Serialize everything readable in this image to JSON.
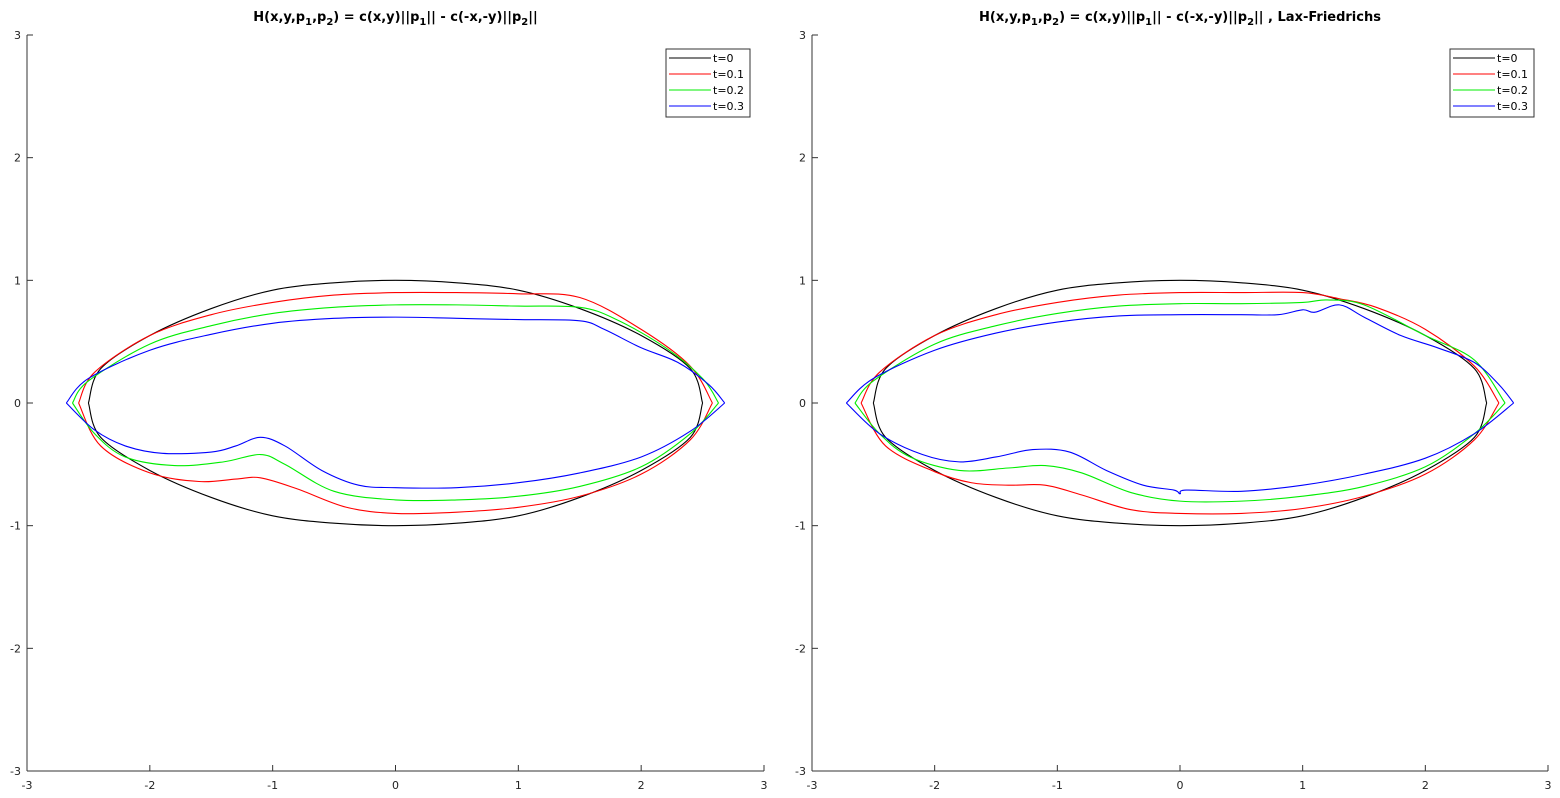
{
  "chart_data": [
    {
      "type": "line",
      "title": {
        "prefix": "H(x,y,p",
        "sub1": "1",
        "mid1": ",p",
        "sub2": "2",
        "mid2": ") = c(x,y)||p",
        "sub3": "1",
        "mid3": "|| - c(-x,-y)||p",
        "sub4": "2",
        "suffix": "||"
      },
      "xlim": [
        -3,
        3
      ],
      "ylim": [
        -3,
        3
      ],
      "xticks": [
        -3,
        -2,
        -1,
        0,
        1,
        2,
        3
      ],
      "yticks": [
        -3,
        -2,
        -1,
        0,
        1,
        2,
        3
      ],
      "grid": false,
      "legend_position": "top-right",
      "series": [
        {
          "name": "t=0",
          "color": "#000000",
          "upper": [
            [
              -2.5,
              0
            ],
            [
              -2.4,
              0.28
            ],
            [
              -2,
              0.55
            ],
            [
              -1.5,
              0.77
            ],
            [
              -1,
              0.92
            ],
            [
              -0.5,
              0.98
            ],
            [
              0,
              1
            ],
            [
              0.5,
              0.98
            ],
            [
              1,
              0.92
            ],
            [
              1.5,
              0.77
            ],
            [
              2,
              0.55
            ],
            [
              2.4,
              0.28
            ],
            [
              2.5,
              0
            ]
          ],
          "lower": [
            [
              -2.5,
              0
            ],
            [
              -2.4,
              -0.28
            ],
            [
              -2,
              -0.55
            ],
            [
              -1.5,
              -0.77
            ],
            [
              -1,
              -0.92
            ],
            [
              -0.5,
              -0.98
            ],
            [
              0,
              -1
            ],
            [
              0.5,
              -0.98
            ],
            [
              1,
              -0.92
            ],
            [
              1.5,
              -0.77
            ],
            [
              2,
              -0.55
            ],
            [
              2.4,
              -0.28
            ],
            [
              2.5,
              0
            ]
          ]
        },
        {
          "name": "t=0.1",
          "color": "#ff0000",
          "upper": [
            [
              -2.58,
              0
            ],
            [
              -2.45,
              0.25
            ],
            [
              -2,
              0.55
            ],
            [
              -1.5,
              0.72
            ],
            [
              -1,
              0.82
            ],
            [
              -0.5,
              0.88
            ],
            [
              0,
              0.9
            ],
            [
              0.5,
              0.9
            ],
            [
              1,
              0.89
            ],
            [
              1.5,
              0.86
            ],
            [
              2,
              0.6
            ],
            [
              2.4,
              0.3
            ],
            [
              2.58,
              0
            ]
          ],
          "lower": [
            [
              -2.58,
              0
            ],
            [
              -2.4,
              -0.35
            ],
            [
              -2,
              -0.57
            ],
            [
              -1.6,
              -0.64
            ],
            [
              -1.3,
              -0.62
            ],
            [
              -1.1,
              -0.61
            ],
            [
              -0.8,
              -0.7
            ],
            [
              -0.4,
              -0.85
            ],
            [
              0,
              -0.9
            ],
            [
              0.5,
              -0.89
            ],
            [
              1,
              -0.85
            ],
            [
              1.5,
              -0.76
            ],
            [
              2,
              -0.58
            ],
            [
              2.4,
              -0.3
            ],
            [
              2.58,
              0
            ]
          ]
        },
        {
          "name": "t=0.2",
          "color": "#00ee00",
          "upper": [
            [
              -2.63,
              0
            ],
            [
              -2.5,
              0.18
            ],
            [
              -2,
              0.48
            ],
            [
              -1.5,
              0.63
            ],
            [
              -1,
              0.73
            ],
            [
              -0.5,
              0.78
            ],
            [
              0,
              0.8
            ],
            [
              0.5,
              0.8
            ],
            [
              1,
              0.79
            ],
            [
              1.5,
              0.78
            ],
            [
              1.8,
              0.68
            ],
            [
              2.2,
              0.45
            ],
            [
              2.5,
              0.2
            ],
            [
              2.63,
              0
            ]
          ],
          "lower": [
            [
              -2.63,
              0
            ],
            [
              -2.45,
              -0.25
            ],
            [
              -2.2,
              -0.44
            ],
            [
              -1.8,
              -0.51
            ],
            [
              -1.4,
              -0.48
            ],
            [
              -1.1,
              -0.42
            ],
            [
              -0.9,
              -0.5
            ],
            [
              -0.5,
              -0.72
            ],
            [
              0,
              -0.79
            ],
            [
              0.5,
              -0.79
            ],
            [
              1,
              -0.76
            ],
            [
              1.5,
              -0.68
            ],
            [
              2,
              -0.52
            ],
            [
              2.4,
              -0.25
            ],
            [
              2.63,
              0
            ]
          ]
        },
        {
          "name": "t=0.3",
          "color": "#0000ff",
          "upper": [
            [
              -2.68,
              0
            ],
            [
              -2.5,
              0.2
            ],
            [
              -2,
              0.43
            ],
            [
              -1.5,
              0.56
            ],
            [
              -1,
              0.65
            ],
            [
              -0.5,
              0.69
            ],
            [
              0,
              0.7
            ],
            [
              0.5,
              0.69
            ],
            [
              1,
              0.68
            ],
            [
              1.5,
              0.67
            ],
            [
              1.7,
              0.6
            ],
            [
              2,
              0.45
            ],
            [
              2.3,
              0.33
            ],
            [
              2.55,
              0.15
            ],
            [
              2.68,
              0
            ]
          ],
          "lower": [
            [
              -2.68,
              0
            ],
            [
              -2.45,
              -0.22
            ],
            [
              -2.2,
              -0.35
            ],
            [
              -1.9,
              -0.41
            ],
            [
              -1.5,
              -0.4
            ],
            [
              -1.3,
              -0.35
            ],
            [
              -1.1,
              -0.28
            ],
            [
              -0.9,
              -0.35
            ],
            [
              -0.6,
              -0.55
            ],
            [
              -0.3,
              -0.67
            ],
            [
              0,
              -0.69
            ],
            [
              0.5,
              -0.69
            ],
            [
              1,
              -0.65
            ],
            [
              1.5,
              -0.57
            ],
            [
              2,
              -0.44
            ],
            [
              2.4,
              -0.23
            ],
            [
              2.68,
              0
            ]
          ]
        }
      ]
    },
    {
      "type": "line",
      "title": {
        "prefix": "H(x,y,p",
        "sub1": "1",
        "mid1": ",p",
        "sub2": "2",
        "mid2": ") = c(x,y)||p",
        "sub3": "1",
        "mid3": "|| - c(-x,-y)||p",
        "sub4": "2",
        "suffix": "|| , Lax-Friedrichs"
      },
      "xlim": [
        -3,
        3
      ],
      "ylim": [
        -3,
        3
      ],
      "xticks": [
        -3,
        -2,
        -1,
        0,
        1,
        2,
        3
      ],
      "yticks": [
        -3,
        -2,
        -1,
        0,
        1,
        2,
        3
      ],
      "grid": false,
      "legend_position": "top-right",
      "series": [
        {
          "name": "t=0",
          "color": "#000000",
          "upper": [
            [
              -2.5,
              0
            ],
            [
              -2.4,
              0.28
            ],
            [
              -2,
              0.55
            ],
            [
              -1.5,
              0.77
            ],
            [
              -1,
              0.92
            ],
            [
              -0.5,
              0.98
            ],
            [
              0,
              1
            ],
            [
              0.5,
              0.98
            ],
            [
              1,
              0.92
            ],
            [
              1.5,
              0.77
            ],
            [
              2,
              0.55
            ],
            [
              2.4,
              0.28
            ],
            [
              2.5,
              0
            ]
          ],
          "lower": [
            [
              -2.5,
              0
            ],
            [
              -2.4,
              -0.28
            ],
            [
              -2,
              -0.55
            ],
            [
              -1.5,
              -0.77
            ],
            [
              -1,
              -0.92
            ],
            [
              -0.5,
              -0.98
            ],
            [
              0,
              -1
            ],
            [
              0.5,
              -0.98
            ],
            [
              1,
              -0.92
            ],
            [
              1.5,
              -0.77
            ],
            [
              2,
              -0.55
            ],
            [
              2.4,
              -0.28
            ],
            [
              2.5,
              0
            ]
          ]
        },
        {
          "name": "t=0.1",
          "color": "#ff0000",
          "upper": [
            [
              -2.6,
              0
            ],
            [
              -2.45,
              0.25
            ],
            [
              -2,
              0.55
            ],
            [
              -1.5,
              0.72
            ],
            [
              -1,
              0.82
            ],
            [
              -0.5,
              0.88
            ],
            [
              0,
              0.9
            ],
            [
              0.5,
              0.9
            ],
            [
              1,
              0.9
            ],
            [
              1.3,
              0.85
            ],
            [
              1.6,
              0.78
            ],
            [
              2,
              0.6
            ],
            [
              2.4,
              0.3
            ],
            [
              2.6,
              0
            ]
          ],
          "lower": [
            [
              -2.6,
              0
            ],
            [
              -2.4,
              -0.35
            ],
            [
              -2,
              -0.56
            ],
            [
              -1.7,
              -0.65
            ],
            [
              -1.4,
              -0.67
            ],
            [
              -1.1,
              -0.67
            ],
            [
              -0.8,
              -0.75
            ],
            [
              -0.4,
              -0.87
            ],
            [
              0,
              -0.9
            ],
            [
              0.5,
              -0.9
            ],
            [
              1,
              -0.86
            ],
            [
              1.5,
              -0.76
            ],
            [
              2,
              -0.58
            ],
            [
              2.4,
              -0.3
            ],
            [
              2.6,
              0
            ]
          ]
        },
        {
          "name": "t=0.2",
          "color": "#00ee00",
          "upper": [
            [
              -2.65,
              0
            ],
            [
              -2.5,
              0.18
            ],
            [
              -2,
              0.48
            ],
            [
              -1.5,
              0.63
            ],
            [
              -1,
              0.73
            ],
            [
              -0.5,
              0.79
            ],
            [
              0,
              0.81
            ],
            [
              0.5,
              0.81
            ],
            [
              1,
              0.82
            ],
            [
              1.2,
              0.84
            ],
            [
              1.5,
              0.8
            ],
            [
              2,
              0.55
            ],
            [
              2.4,
              0.35
            ],
            [
              2.65,
              0
            ]
          ],
          "lower": [
            [
              -2.65,
              0
            ],
            [
              -2.45,
              -0.25
            ],
            [
              -2.2,
              -0.44
            ],
            [
              -1.8,
              -0.55
            ],
            [
              -1.4,
              -0.53
            ],
            [
              -1.1,
              -0.51
            ],
            [
              -0.8,
              -0.57
            ],
            [
              -0.4,
              -0.73
            ],
            [
              0,
              -0.8
            ],
            [
              0.5,
              -0.8
            ],
            [
              1,
              -0.76
            ],
            [
              1.5,
              -0.68
            ],
            [
              2,
              -0.52
            ],
            [
              2.4,
              -0.25
            ],
            [
              2.65,
              0
            ]
          ]
        },
        {
          "name": "t=0.3",
          "color": "#0000ff",
          "upper": [
            [
              -2.72,
              0
            ],
            [
              -2.5,
              0.2
            ],
            [
              -2,
              0.43
            ],
            [
              -1.5,
              0.57
            ],
            [
              -1,
              0.66
            ],
            [
              -0.5,
              0.71
            ],
            [
              0,
              0.72
            ],
            [
              0.5,
              0.72
            ],
            [
              0.8,
              0.72
            ],
            [
              1,
              0.76
            ],
            [
              1.1,
              0.74
            ],
            [
              1.3,
              0.8
            ],
            [
              1.5,
              0.7
            ],
            [
              1.8,
              0.55
            ],
            [
              2.1,
              0.45
            ],
            [
              2.4,
              0.33
            ],
            [
              2.6,
              0.15
            ],
            [
              2.72,
              0
            ]
          ],
          "lower": [
            [
              -2.72,
              0
            ],
            [
              -2.45,
              -0.25
            ],
            [
              -2.1,
              -0.42
            ],
            [
              -1.8,
              -0.48
            ],
            [
              -1.5,
              -0.44
            ],
            [
              -1.2,
              -0.38
            ],
            [
              -0.9,
              -0.4
            ],
            [
              -0.6,
              -0.55
            ],
            [
              -0.3,
              -0.67
            ],
            [
              -0.05,
              -0.71
            ],
            [
              0,
              -0.74
            ],
            [
              0.05,
              -0.71
            ],
            [
              0.5,
              -0.72
            ],
            [
              1,
              -0.67
            ],
            [
              1.5,
              -0.58
            ],
            [
              2,
              -0.45
            ],
            [
              2.4,
              -0.25
            ],
            [
              2.72,
              0
            ]
          ]
        }
      ]
    }
  ]
}
